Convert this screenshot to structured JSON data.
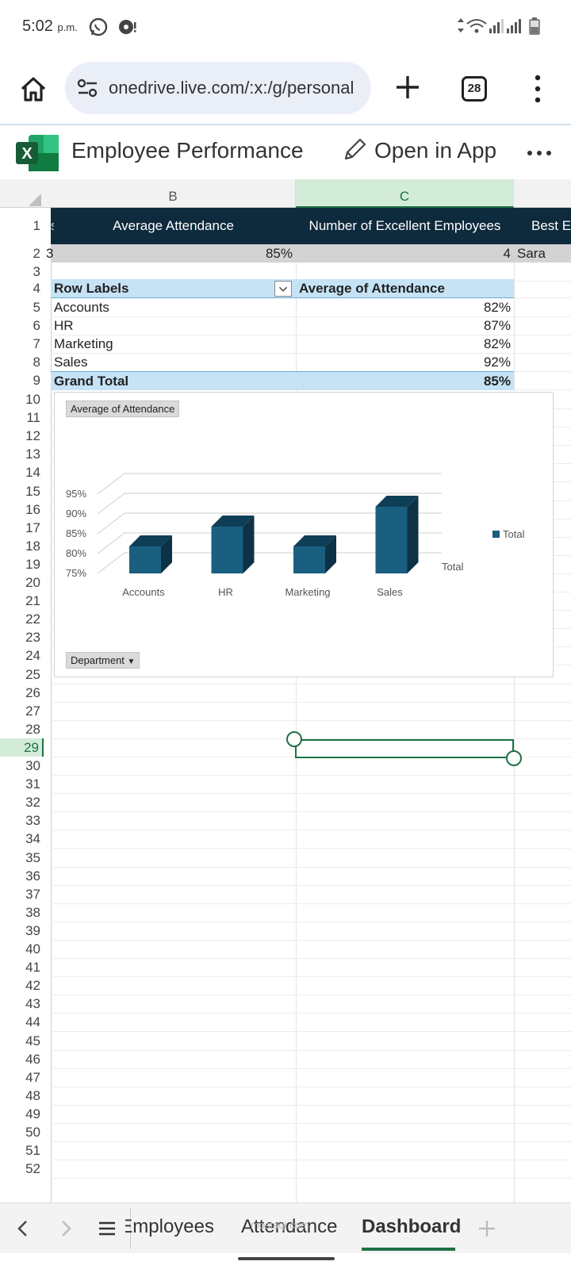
{
  "status": {
    "time": "5:02",
    "ampm": "p.m."
  },
  "browser": {
    "url": "onedrive.live.com/:x:/g/personal",
    "tab_count": "28"
  },
  "app": {
    "title": "Employee Performance",
    "open_in_app": "Open in App"
  },
  "columns": [
    "B",
    "C"
  ],
  "rows": [
    "1",
    "2",
    "3",
    "4",
    "5",
    "6",
    "7",
    "8",
    "9",
    "10",
    "11",
    "12",
    "13",
    "14",
    "15",
    "16",
    "17",
    "18",
    "19",
    "20",
    "21",
    "22",
    "23",
    "24",
    "25",
    "26",
    "27",
    "28",
    "29",
    "30",
    "31",
    "32",
    "33",
    "34",
    "35",
    "36",
    "37",
    "38",
    "39",
    "40",
    "41",
    "42",
    "43",
    "44",
    "45",
    "46",
    "47",
    "48",
    "49",
    "50",
    "51",
    "52"
  ],
  "header_row": {
    "a_fragment": "s",
    "b": "Average Attendance",
    "c": "Number of Excellent Employees",
    "d": "Best E"
  },
  "summary_row": {
    "a_fragment": "3",
    "b": "85%",
    "c": "4",
    "d": "Sara"
  },
  "pivot": {
    "row_labels": "Row Labels",
    "value_header": "Average of Attendance",
    "items": [
      {
        "label": "Accounts",
        "value": "82%"
      },
      {
        "label": "HR",
        "value": "87%"
      },
      {
        "label": "Marketing",
        "value": "82%"
      },
      {
        "label": "Sales",
        "value": "92%"
      }
    ],
    "grand_total_label": "Grand Total",
    "grand_total_value": "85%"
  },
  "chart_data": {
    "type": "bar",
    "title": "Average of Attendance",
    "categories": [
      "Accounts",
      "HR",
      "Marketing",
      "Sales"
    ],
    "series": [
      {
        "name": "Total",
        "values": [
          82,
          87,
          82,
          92
        ]
      }
    ],
    "ylim": [
      75,
      95
    ],
    "yticks": [
      "95%",
      "90%",
      "85%",
      "80%",
      "75%"
    ],
    "depth_axis_label": "Total",
    "filter_button": "Department",
    "bar_color": "#1a5f80",
    "legend_position": "right"
  },
  "sheets": {
    "employees": "Employees",
    "attendance": "Attendance",
    "dashboard": "Dashboard"
  },
  "selected_row": "29",
  "watermark": "mostaqi.com"
}
